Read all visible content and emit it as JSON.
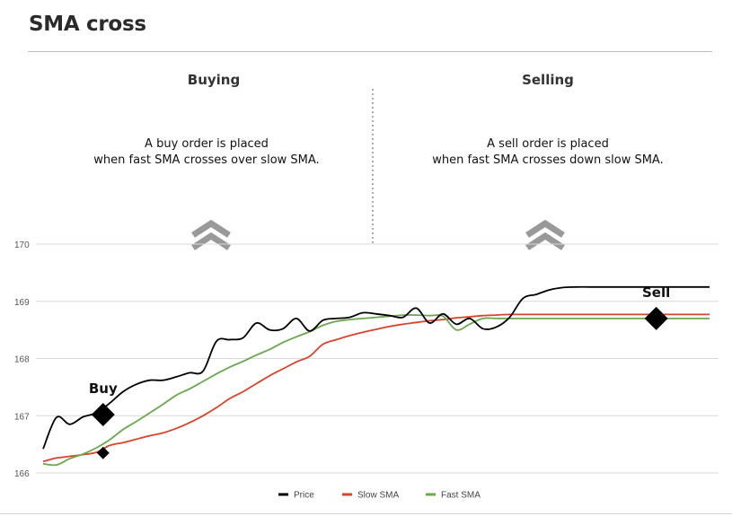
{
  "header": {
    "title": "SMA cross"
  },
  "sections": {
    "buying": {
      "heading": "Buying",
      "line1": "A buy order is placed",
      "line2": "when fast SMA crosses over slow SMA."
    },
    "selling": {
      "heading": "Selling",
      "line1": "A sell order is placed",
      "line2": "when fast SMA crosses down slow SMA."
    }
  },
  "icons": {
    "buying": "double-chevron-up-icon",
    "selling": "double-chevron-up-icon"
  },
  "chart_data": {
    "type": "line",
    "title": "",
    "xlabel": "",
    "ylabel": "",
    "ylim": [
      166,
      170
    ],
    "yticks": [
      "166",
      "167",
      "168",
      "169",
      "170"
    ],
    "grid": true,
    "legend_position": "bottom",
    "x": [
      0,
      2,
      4,
      6,
      8,
      10,
      12,
      14,
      16,
      18,
      20,
      22,
      24,
      26,
      28,
      30,
      32,
      34,
      36,
      38,
      40,
      42,
      44,
      46,
      48,
      50,
      52,
      54,
      56,
      58,
      60,
      62,
      64,
      66,
      68,
      70,
      72,
      74,
      76,
      78,
      80,
      82,
      84,
      86,
      88,
      90,
      92,
      94,
      96,
      98,
      100
    ],
    "series": [
      {
        "name": "Price",
        "color": "#000000",
        "values": [
          166.42,
          166.97,
          166.85,
          166.98,
          167.05,
          167.22,
          167.42,
          167.55,
          167.62,
          167.62,
          167.68,
          167.75,
          167.78,
          168.3,
          168.33,
          168.36,
          168.62,
          168.5,
          168.52,
          168.7,
          168.48,
          168.67,
          168.7,
          168.72,
          168.8,
          168.78,
          168.75,
          168.72,
          168.88,
          168.62,
          168.78,
          168.6,
          168.7,
          168.52,
          168.55,
          168.72,
          169.05,
          169.12,
          169.2,
          169.24,
          169.25,
          169.25,
          169.25,
          169.25,
          169.25,
          169.25,
          169.25,
          169.25,
          169.25,
          169.25,
          169.25
        ]
      },
      {
        "name": "Slow SMA",
        "color": "#d8442b",
        "values": [
          166.2,
          166.26,
          166.29,
          166.32,
          166.36,
          166.48,
          166.53,
          166.59,
          166.65,
          166.7,
          166.78,
          166.88,
          167.0,
          167.14,
          167.3,
          167.42,
          167.56,
          167.7,
          167.82,
          167.94,
          168.04,
          168.25,
          168.33,
          168.4,
          168.46,
          168.51,
          168.56,
          168.6,
          168.63,
          168.66,
          168.68,
          168.71,
          168.73,
          168.75,
          168.76,
          168.77,
          168.77,
          168.77,
          168.77,
          168.77,
          168.77,
          168.77,
          168.77,
          168.77,
          168.77,
          168.77,
          168.77,
          168.77,
          168.77,
          168.77,
          168.77
        ]
      },
      {
        "name": "Fast SMA",
        "color": "#6aa84f",
        "values": [
          166.16,
          166.14,
          166.25,
          166.33,
          166.44,
          166.58,
          166.76,
          166.9,
          167.05,
          167.2,
          167.36,
          167.47,
          167.6,
          167.73,
          167.85,
          167.95,
          168.06,
          168.16,
          168.28,
          168.38,
          168.47,
          168.58,
          168.65,
          168.68,
          168.7,
          168.72,
          168.74,
          168.76,
          168.76,
          168.75,
          168.74,
          168.5,
          168.6,
          168.7,
          168.7,
          168.7,
          168.7,
          168.7,
          168.7,
          168.7,
          168.7,
          168.7,
          168.7,
          168.7,
          168.7,
          168.7,
          168.7,
          168.7,
          168.7,
          168.7,
          168.7
        ]
      }
    ],
    "annotations": [
      {
        "label": "Buy",
        "x": 9,
        "y": 167.02,
        "size": "large"
      },
      {
        "label": "",
        "x": 9,
        "y": 166.35,
        "size": "small"
      },
      {
        "label": "Sell",
        "x": 92,
        "y": 168.7,
        "size": "large"
      }
    ]
  }
}
